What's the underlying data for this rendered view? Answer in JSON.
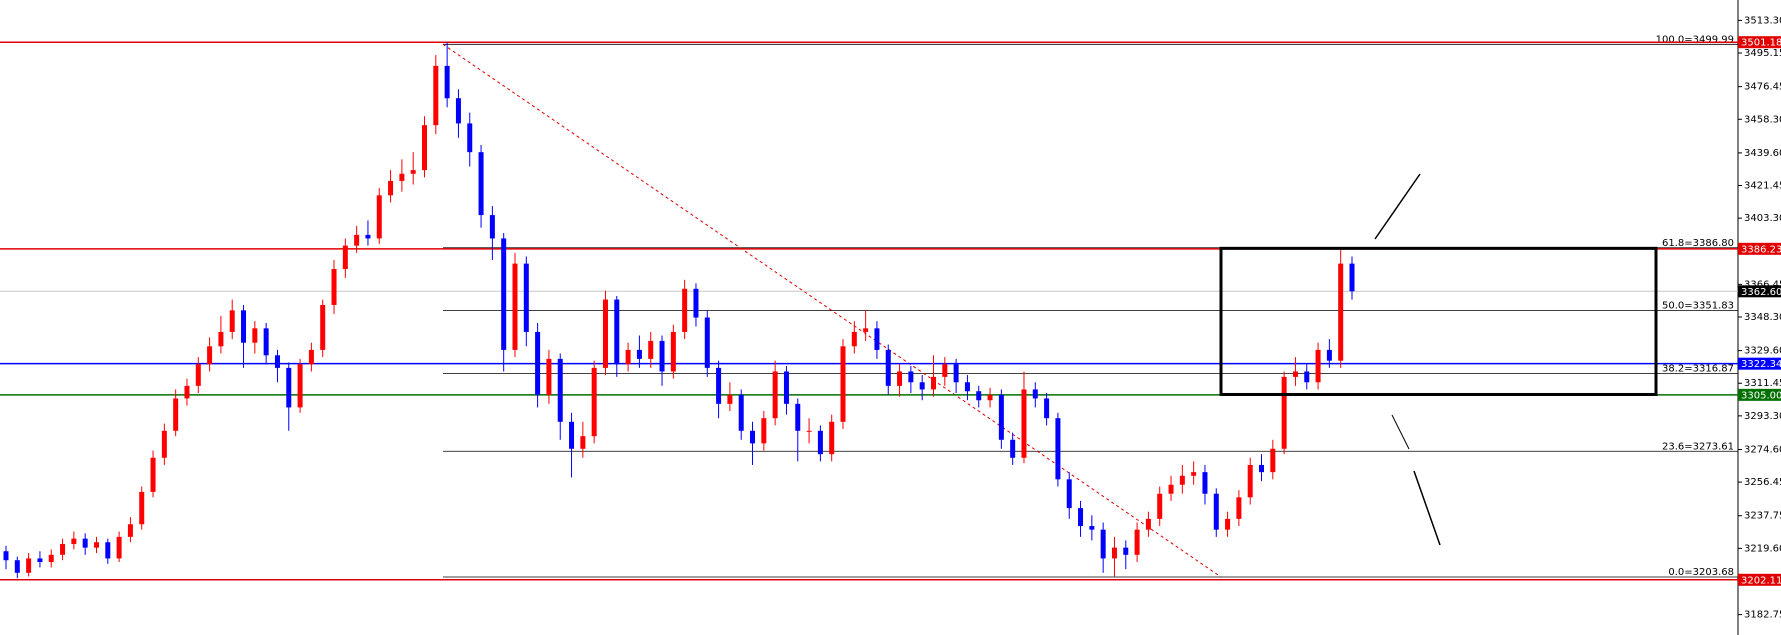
{
  "chart_data": {
    "type": "candlestick",
    "up_color": "#ff0000",
    "down_color": "#0000ff",
    "ylim": [
      3171.4,
      3524.65
    ],
    "yticks": [
      {
        "value": 3513.3,
        "label": "3513.30"
      },
      3495.15,
      3476.45,
      {
        "value": 3458.3,
        "label": "3458.30"
      },
      {
        "value": 3439.6,
        "label": "3439.60"
      },
      3421.45,
      {
        "value": 3403.3,
        "label": "3403.30"
      },
      3366.45,
      {
        "value": 3348.3,
        "label": "3348.30"
      },
      {
        "value": 3329.6,
        "label": "3329.60"
      },
      3311.45,
      {
        "value": 3293.3,
        "label": "3293.30"
      },
      {
        "value": 3274.6,
        "label": "3274.60"
      },
      3256.45,
      3237.75,
      {
        "value": 3219.6,
        "label": "3219.60"
      },
      3182.75
    ],
    "open": [
      3218,
      3213,
      3206,
      3214,
      3212,
      3216,
      3222,
      3225,
      3220,
      3223,
      3214,
      3226,
      3233,
      3251,
      3270,
      3285,
      3303,
      3310,
      3322,
      3332,
      3340,
      3352,
      3334,
      3342,
      3327,
      3320,
      3298,
      3322,
      3330,
      3355,
      3375,
      3388,
      3394,
      3392,
      3416,
      3424,
      3428,
      3430,
      3455,
      3488,
      3470,
      3456,
      3440,
      3405,
      3392,
      3330,
      3378,
      3340,
      3305,
      3325,
      3290,
      3275,
      3282,
      3320,
      3358,
      3322,
      3330,
      3325,
      3335,
      3318,
      3340,
      3364,
      3348,
      3320,
      3300,
      3305,
      3285,
      3278,
      3292,
      3318,
      3300,
      3285,
      3285,
      3272,
      3290,
      3332,
      3340,
      3342,
      3330,
      3310,
      3318,
      3312,
      3308,
      3315,
      3322,
      3312,
      3307,
      3302,
      3305,
      3280,
      3270,
      3308,
      3303,
      3292,
      3258,
      3242,
      3232,
      3230,
      3214,
      3220,
      3216,
      3230,
      3236,
      3250,
      3255,
      3260,
      3262,
      3250,
      3230,
      3236,
      3248,
      3266,
      3262,
      3275,
      3315,
      3318,
      3312,
      3330,
      3324,
      3378
    ],
    "high": [
      3221,
      3215,
      3217,
      3218,
      3219,
      3225,
      3229,
      3228,
      3226,
      3225,
      3229,
      3237,
      3254,
      3274,
      3289,
      3308,
      3314,
      3326,
      3337,
      3349,
      3358,
      3355,
      3346,
      3345,
      3330,
      3323,
      3325,
      3334,
      3358,
      3380,
      3392,
      3399,
      3402,
      3420,
      3430,
      3436,
      3440,
      3460,
      3494,
      3501,
      3475,
      3462,
      3444,
      3410,
      3395,
      3384,
      3382,
      3345,
      3330,
      3328,
      3295,
      3290,
      3324,
      3363,
      3360,
      3334,
      3338,
      3340,
      3338,
      3344,
      3369,
      3367,
      3352,
      3324,
      3312,
      3308,
      3290,
      3296,
      3324,
      3321,
      3303,
      3292,
      3288,
      3294,
      3336,
      3346,
      3352,
      3346,
      3333,
      3322,
      3321,
      3316,
      3327,
      3326,
      3325,
      3316,
      3310,
      3309,
      3308,
      3284,
      3318,
      3312,
      3306,
      3295,
      3262,
      3246,
      3238,
      3234,
      3226,
      3224,
      3234,
      3240,
      3254,
      3260,
      3266,
      3268,
      3266,
      3253,
      3240,
      3252,
      3270,
      3272,
      3280,
      3318,
      3326,
      3322,
      3334,
      3336,
      3386,
      3382
    ],
    "low": [
      3208,
      3203,
      3204,
      3209,
      3209,
      3213,
      3219,
      3216,
      3217,
      3211,
      3212,
      3223,
      3230,
      3248,
      3266,
      3282,
      3299,
      3306,
      3318,
      3328,
      3336,
      3320,
      3328,
      3322,
      3312,
      3285,
      3295,
      3318,
      3326,
      3350,
      3370,
      3384,
      3388,
      3389,
      3412,
      3418,
      3422,
      3426,
      3450,
      3465,
      3448,
      3432,
      3398,
      3380,
      3318,
      3326,
      3332,
      3298,
      3300,
      3280,
      3259,
      3270,
      3278,
      3316,
      3315,
      3318,
      3320,
      3320,
      3310,
      3314,
      3336,
      3343,
      3315,
      3292,
      3296,
      3280,
      3266,
      3274,
      3288,
      3294,
      3268,
      3278,
      3268,
      3268,
      3286,
      3328,
      3335,
      3325,
      3305,
      3304,
      3306,
      3302,
      3304,
      3310,
      3306,
      3302,
      3298,
      3298,
      3275,
      3266,
      3267,
      3298,
      3288,
      3254,
      3236,
      3226,
      3224,
      3206,
      3204,
      3208,
      3212,
      3226,
      3232,
      3246,
      3250,
      3255,
      3244,
      3226,
      3226,
      3232,
      3244,
      3257,
      3258,
      3272,
      3310,
      3308,
      3308,
      3320,
      3320,
      3358
    ],
    "close": [
      3213,
      3206,
      3214,
      3212,
      3216,
      3222,
      3225,
      3220,
      3223,
      3214,
      3226,
      3233,
      3251,
      3270,
      3285,
      3303,
      3310,
      3322,
      3332,
      3340,
      3352,
      3334,
      3342,
      3327,
      3320,
      3298,
      3322,
      3330,
      3355,
      3375,
      3388,
      3394,
      3392,
      3416,
      3424,
      3428,
      3430,
      3455,
      3488,
      3470,
      3456,
      3440,
      3405,
      3392,
      3330,
      3378,
      3340,
      3305,
      3325,
      3290,
      3275,
      3282,
      3320,
      3358,
      3322,
      3330,
      3325,
      3335,
      3318,
      3340,
      3364,
      3348,
      3320,
      3300,
      3305,
      3285,
      3278,
      3292,
      3318,
      3300,
      3285,
      3285,
      3272,
      3290,
      3332,
      3340,
      3342,
      3330,
      3310,
      3318,
      3312,
      3308,
      3315,
      3322,
      3312,
      3307,
      3302,
      3305,
      3280,
      3270,
      3308,
      3303,
      3292,
      3258,
      3242,
      3232,
      3230,
      3214,
      3220,
      3216,
      3230,
      3236,
      3250,
      3255,
      3260,
      3262,
      3250,
      3230,
      3236,
      3248,
      3266,
      3262,
      3275,
      3315,
      3318,
      3312,
      3330,
      3324,
      3378,
      3362.6
    ],
    "price_lines": [
      {
        "value": 3501.18,
        "label": "3501.18",
        "color": "#e00000"
      },
      {
        "value": 3386.23,
        "label": "3386.23",
        "color": "#e00000"
      },
      {
        "value": 3362.6,
        "label": "3362.60",
        "color": "#c8c8c8",
        "label_color": "#000000"
      },
      {
        "value": 3322.34,
        "label": "3322.34",
        "color": "#0000ff"
      },
      {
        "value": 3305.0,
        "label": "3305.00",
        "color": "#007000"
      },
      {
        "value": 3202.11,
        "label": "3202.11",
        "color": "#e00000"
      }
    ],
    "fib_levels": [
      {
        "value": 3499.99,
        "label": "100.0=3499.99"
      },
      {
        "value": 3386.8,
        "label": "61.8=3386.80"
      },
      {
        "value": 3351.83,
        "label": "50.0=3351.83"
      },
      {
        "value": 3316.87,
        "label": "38.2=3316.87"
      },
      {
        "value": 3273.61,
        "label": "23.6=3273.61"
      },
      {
        "value": 3203.68,
        "label": "0.0=3203.68"
      }
    ],
    "box": {
      "high": 3386.5,
      "low": 3305.2
    }
  }
}
